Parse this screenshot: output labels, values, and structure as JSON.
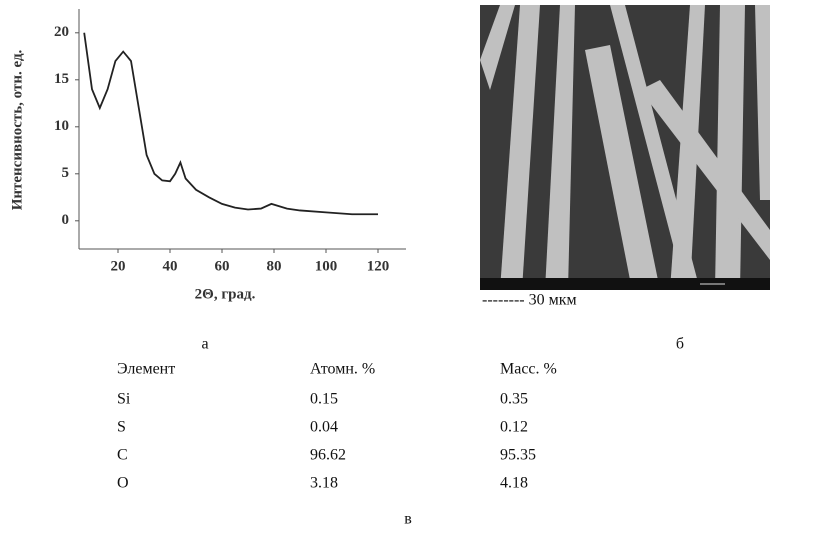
{
  "chart_data": {
    "type": "line",
    "xlabel": "2Θ, град.",
    "ylabel": "Интенсивность, отн. ед.",
    "x": [
      7,
      10,
      13,
      16,
      19,
      22,
      25,
      28,
      31,
      34,
      37,
      40,
      42,
      44,
      46,
      50,
      55,
      60,
      65,
      70,
      75,
      79,
      85,
      90,
      100,
      110,
      120
    ],
    "values": [
      20,
      14,
      12,
      14,
      17,
      18,
      17,
      12,
      7,
      5,
      4.3,
      4.2,
      5,
      6.2,
      4.5,
      3.3,
      2.5,
      1.8,
      1.4,
      1.2,
      1.3,
      1.8,
      1.3,
      1.1,
      0.9,
      0.7,
      0.7
    ],
    "color": "#222222",
    "xlim": [
      5,
      125
    ],
    "ylim": [
      -3,
      22
    ],
    "xticks": [
      20,
      40,
      60,
      80,
      100,
      120
    ],
    "yticks": [
      0,
      5,
      10,
      15,
      20
    ]
  },
  "image": {
    "scale_bar": "-------- 30 мкм"
  },
  "panel_labels": [
    "а",
    "б",
    "в"
  ],
  "table": {
    "header": [
      "Элемент",
      "Атомн. %",
      "Масс. %"
    ],
    "rows": [
      [
        "Si",
        "0.15",
        "0.35"
      ],
      [
        "S",
        "0.04",
        "0.12"
      ],
      [
        "C",
        "96.62",
        "95.35"
      ],
      [
        "O",
        "3.18",
        "4.18"
      ]
    ]
  }
}
